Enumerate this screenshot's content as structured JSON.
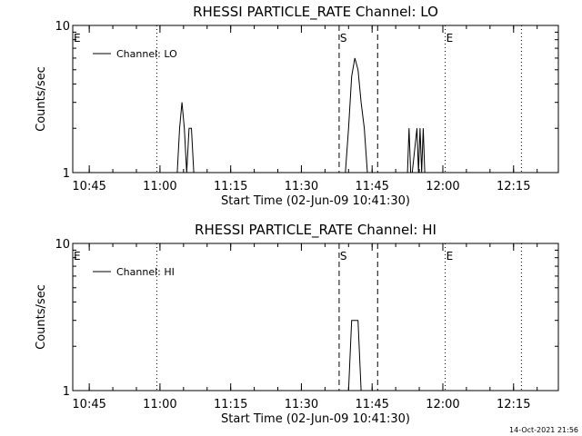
{
  "chart_data": [
    {
      "type": "line",
      "title": "RHESSI PARTICLE_RATE Channel: LO",
      "xlabel": "Start Time (02-Jun-09 10:41:30)",
      "ylabel": "Counts/sec",
      "x_ticks": [
        "10:45",
        "11:00",
        "11:15",
        "11:30",
        "11:45",
        "12:00",
        "12:15"
      ],
      "y_ticks": [
        "1",
        "10"
      ],
      "y_scale": "log",
      "ylim": [
        1,
        10
      ],
      "xlim": [
        "10:41:30",
        "12:24:30"
      ],
      "legend": {
        "position": "top-left"
      },
      "series": [
        {
          "name": "Channel: LO",
          "x": [
            "11:03:40",
            "11:04:10",
            "11:04:40",
            "11:05:10",
            "11:05:40",
            "11:06:10",
            "11:06:40",
            "11:07:10",
            "11:07:40",
            "11:08:10",
            "11:08:40",
            "11:39:20",
            "11:40:00",
            "11:40:40",
            "11:41:20",
            "11:42:00",
            "11:42:40",
            "11:43:20",
            "11:44:00",
            "11:44:40",
            "11:52:30",
            "11:52:50",
            "11:53:10",
            "11:53:30",
            "11:54:30",
            "11:54:50",
            "11:55:10",
            "11:55:30",
            "11:55:50",
            "11:56:10"
          ],
          "y": [
            1.0,
            2.0,
            3.0,
            2.0,
            1.0,
            2.0,
            2.0,
            1.0,
            1.0,
            1.0,
            1.0,
            1.0,
            2.0,
            4.5,
            6.0,
            5.0,
            3.0,
            2.0,
            1.0,
            1.0,
            1.0,
            2.0,
            1.0,
            1.0,
            2.0,
            1.0,
            2.0,
            1.0,
            2.0,
            1.0
          ]
        }
      ],
      "markers": [
        {
          "label": "E",
          "time": "10:41:30",
          "style": "dotted"
        },
        {
          "label": "",
          "time": "10:59:20",
          "style": "dotted"
        },
        {
          "label": "S",
          "time": "11:38:00",
          "style": "dashed"
        },
        {
          "label": "",
          "time": "11:46:10",
          "style": "dashed"
        },
        {
          "label": "E",
          "time": "12:00:30",
          "style": "dotted"
        },
        {
          "label": "",
          "time": "12:16:40",
          "style": "dotted"
        }
      ]
    },
    {
      "type": "line",
      "title": "RHESSI PARTICLE_RATE Channel: HI",
      "xlabel": "Start Time (02-Jun-09 10:41:30)",
      "ylabel": "Counts/sec",
      "x_ticks": [
        "10:45",
        "11:00",
        "11:15",
        "11:30",
        "11:45",
        "12:00",
        "12:15"
      ],
      "y_ticks": [
        "1",
        "10"
      ],
      "y_scale": "log",
      "ylim": [
        1,
        10
      ],
      "xlim": [
        "10:41:30",
        "12:24:30"
      ],
      "legend": {
        "position": "top-left"
      },
      "series": [
        {
          "name": "Channel: HI",
          "x": [
            "11:40:00",
            "11:40:40",
            "11:41:20",
            "11:42:00",
            "11:42:40"
          ],
          "y": [
            1.0,
            3.0,
            3.0,
            3.0,
            1.0
          ]
        }
      ],
      "markers": [
        {
          "label": "E",
          "time": "10:41:30",
          "style": "dotted"
        },
        {
          "label": "",
          "time": "10:59:20",
          "style": "dotted"
        },
        {
          "label": "S",
          "time": "11:38:00",
          "style": "dashed"
        },
        {
          "label": "",
          "time": "11:46:10",
          "style": "dashed"
        },
        {
          "label": "E",
          "time": "12:00:30",
          "style": "dotted"
        },
        {
          "label": "",
          "time": "12:16:40",
          "style": "dotted"
        }
      ]
    }
  ],
  "footer": {
    "timestamp": "14-Oct-2021 21:56"
  }
}
